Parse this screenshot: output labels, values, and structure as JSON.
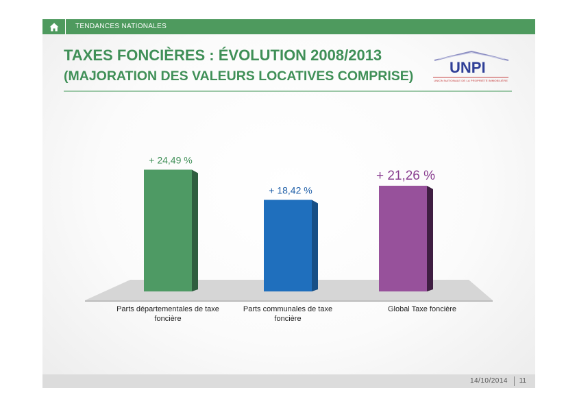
{
  "header": {
    "section_label": "TENDANCES NATIONALES",
    "home_icon": "home-icon"
  },
  "slide": {
    "title": "TAXES FONCIÈRES : ÉVOLUTION 2008/2013",
    "subtitle": "(MAJORATION DES VALEURS LOCATIVES COMPRISE)"
  },
  "logo": {
    "wordmark": "UNPI",
    "tagline": "UNION NATIONALE DE LA PROPRIÉTÉ IMMOBILIÈRE"
  },
  "chart_data": {
    "type": "bar",
    "categories": [
      [
        "Parts départementales de taxe",
        "foncière"
      ],
      [
        "Parts communales de taxe",
        "foncière"
      ],
      [
        "Global Taxe foncière"
      ]
    ],
    "values": [
      24.49,
      18.42,
      21.26
    ],
    "value_labels": [
      "+ 24,49 %",
      "+ 18,42 %",
      "+ 21,26 %"
    ],
    "colors": [
      "#4e9a64",
      "#1f6fbd",
      "#97519b"
    ],
    "side_colors": [
      "#2f5e3f",
      "#174f86",
      "#3f1e42"
    ],
    "label_colors": [
      "#3f8f57",
      "#1f5fa8",
      "#8a3f90"
    ],
    "ylim": [
      0,
      26
    ],
    "style": "3d"
  },
  "footer": {
    "date": "14/10/2014",
    "page": "11"
  }
}
